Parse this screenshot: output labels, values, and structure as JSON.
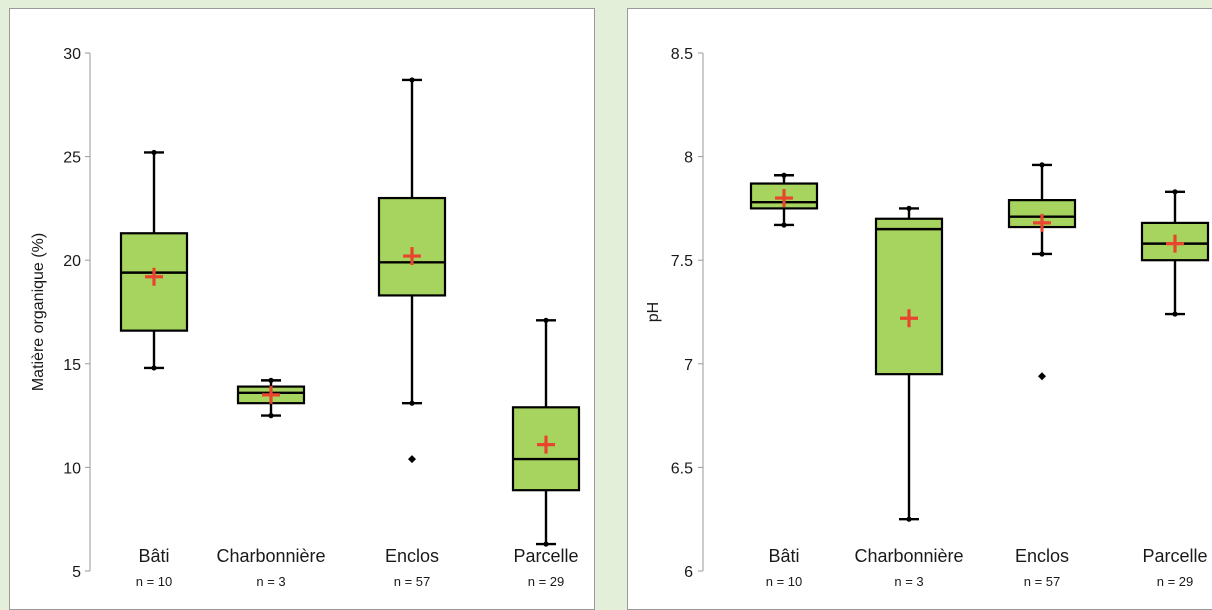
{
  "chart_data": [
    {
      "type": "boxplot",
      "ylabel": "Matière organique (%)",
      "xlabel": "",
      "ylim": [
        5,
        30
      ],
      "yticks": [
        5,
        10,
        15,
        20,
        25,
        30
      ],
      "categories": [
        "Bâti",
        "Charbonnière",
        "Enclos",
        "Parcelle"
      ],
      "counts": [
        "n = 10",
        "n = 3",
        "n = 57",
        "n = 29"
      ],
      "boxes": [
        {
          "category": "Bâti",
          "whisker_low": 14.8,
          "q1": 16.6,
          "median": 19.4,
          "q3": 21.3,
          "whisker_high": 25.2,
          "mean": 19.2,
          "outliers": []
        },
        {
          "category": "Charbonnière",
          "whisker_low": 12.5,
          "q1": 13.1,
          "median": 13.6,
          "q3": 13.9,
          "whisker_high": 14.2,
          "mean": 13.5,
          "outliers": []
        },
        {
          "category": "Enclos",
          "whisker_low": 13.1,
          "q1": 18.3,
          "median": 19.9,
          "q3": 23.0,
          "whisker_high": 28.7,
          "mean": 20.2,
          "outliers": [
            10.4
          ]
        },
        {
          "category": "Parcelle",
          "whisker_low": 6.3,
          "q1": 8.9,
          "median": 10.4,
          "q3": 12.9,
          "whisker_high": 17.1,
          "mean": 11.1,
          "outliers": []
        }
      ],
      "box_color": "#a6d45e",
      "mean_color": "#e8452e",
      "grid": false
    },
    {
      "type": "boxplot",
      "ylabel": "pH",
      "xlabel": "",
      "ylim": [
        6,
        8.5
      ],
      "yticks": [
        "6",
        "6.5",
        "7",
        "7.5",
        "8",
        "8.5"
      ],
      "categories": [
        "Bâti",
        "Charbonnière",
        "Enclos",
        "Parcelle"
      ],
      "counts": [
        "n = 10",
        "n = 3",
        "n = 57",
        "n = 29"
      ],
      "boxes": [
        {
          "category": "Bâti",
          "whisker_low": 7.67,
          "q1": 7.75,
          "median": 7.78,
          "q3": 7.87,
          "whisker_high": 7.91,
          "mean": 7.8,
          "outliers": []
        },
        {
          "category": "Charbonnière",
          "whisker_low": 6.25,
          "q1": 6.95,
          "median": 7.65,
          "q3": 7.7,
          "whisker_high": 7.75,
          "mean": 7.22,
          "outliers": []
        },
        {
          "category": "Enclos",
          "whisker_low": 7.53,
          "q1": 7.66,
          "median": 7.71,
          "q3": 7.79,
          "whisker_high": 7.96,
          "mean": 7.68,
          "outliers": [
            6.94
          ]
        },
        {
          "category": "Parcelle",
          "whisker_low": 7.24,
          "q1": 7.5,
          "median": 7.58,
          "q3": 7.68,
          "whisker_high": 7.83,
          "mean": 7.58,
          "outliers": []
        }
      ],
      "box_color": "#a6d45e",
      "mean_color": "#e8452e",
      "grid": false
    }
  ]
}
